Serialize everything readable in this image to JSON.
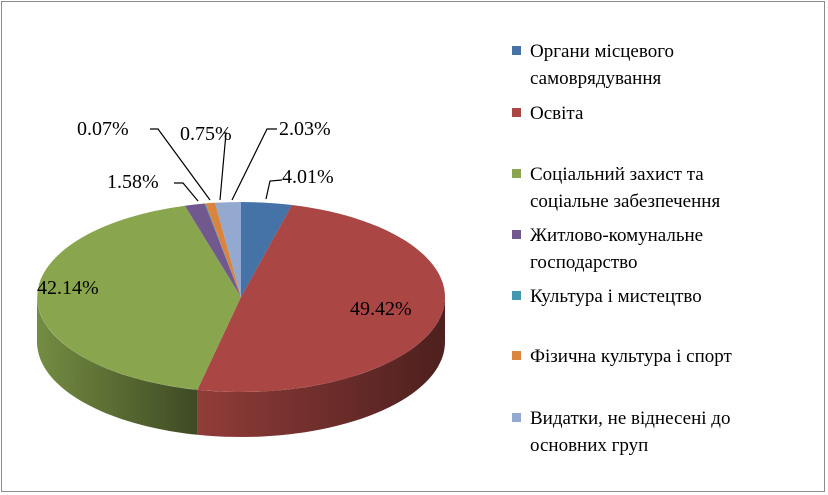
{
  "chart_data": {
    "type": "pie",
    "title": "",
    "legend_position": "right",
    "slices": [
      {
        "name": "Органи місцевого самоврядування",
        "legend_lines": [
          "Органи місцевого",
          "самоврядування"
        ],
        "value": 4.01,
        "label": "4.01%",
        "color": "#4572A7"
      },
      {
        "name": "Освіта",
        "legend_lines": [
          "Освіта"
        ],
        "value": 49.42,
        "label": "49.42%",
        "color": "#AA4643"
      },
      {
        "name": "Соціальний захист та соціальне забезпечення",
        "legend_lines": [
          "Соціальний захист та",
          "соціальне забезпечення"
        ],
        "value": 42.14,
        "label": "42.14%",
        "color": "#89A54E"
      },
      {
        "name": "Житлово-комунальне господарство",
        "legend_lines": [
          "Житлово-комунальне",
          "господарство"
        ],
        "value": 1.58,
        "label": "1.58%",
        "color": "#71588F"
      },
      {
        "name": "Культура і мистецтво",
        "legend_lines": [
          "Культура і мистецтво"
        ],
        "value": 0.07,
        "label": "0.07%",
        "color": "#4198AF"
      },
      {
        "name": "Фізична культура і спорт",
        "legend_lines": [
          "Фізична культура і спорт"
        ],
        "value": 0.75,
        "label": "0.75%",
        "color": "#DB843D"
      },
      {
        "name": "Видатки, не віднесені до основних груп",
        "legend_lines": [
          "Видатки, не віднесені до",
          "основних груп"
        ],
        "value": 2.03,
        "label": "2.03%",
        "color": "#93A9CF"
      }
    ]
  }
}
